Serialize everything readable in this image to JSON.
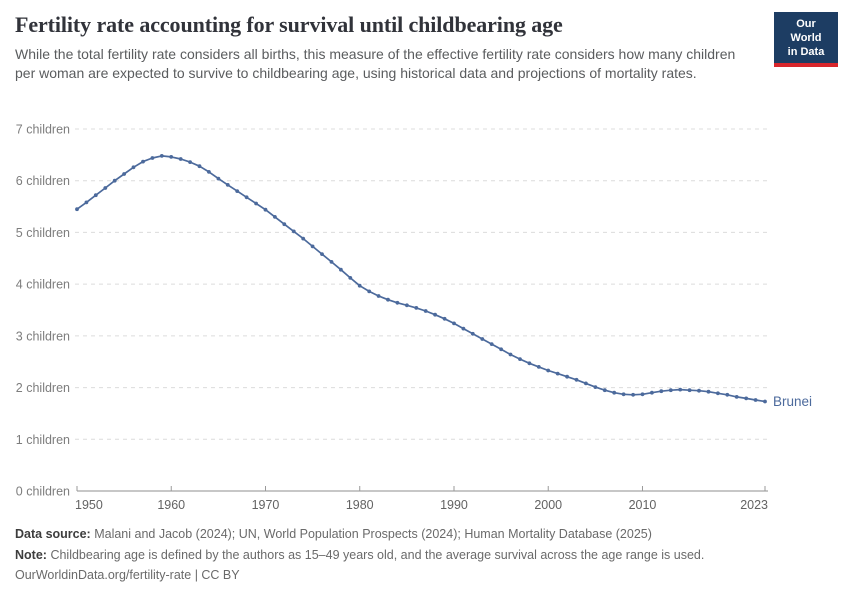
{
  "header": {
    "title": "Fertility rate accounting for survival until childbearing age",
    "subtitle": "While the total fertility rate considers all births, this measure of the effective fertility rate considers how many children per woman are expected to survive to childbearing age, using historical data and projections of mortality rates.",
    "logo": {
      "line1": "Our World",
      "line2": "in Data",
      "bg_color": "#1d3d63",
      "accent_color": "#d8262c"
    }
  },
  "chart_data": {
    "type": "line",
    "title": "Fertility rate accounting for survival until childbearing age",
    "xlabel": "",
    "ylabel": "",
    "xlim": [
      1950,
      2023
    ],
    "ylim": [
      0,
      7
    ],
    "xticks": [
      1950,
      1960,
      1970,
      1980,
      1990,
      2000,
      2010,
      2023
    ],
    "yticks": [
      0,
      1,
      2,
      3,
      4,
      5,
      6,
      7
    ],
    "ytick_suffix": " children",
    "grid": "dashed-horizontal",
    "legend_position": "end-of-line",
    "gridline_color": "#dcdcdc",
    "axis_color": "#8f8f8f",
    "series": [
      {
        "name": "Brunei",
        "color": "#4c6a9c",
        "years": [
          1950,
          1951,
          1952,
          1953,
          1954,
          1955,
          1956,
          1957,
          1958,
          1959,
          1960,
          1961,
          1962,
          1963,
          1964,
          1965,
          1966,
          1967,
          1968,
          1969,
          1970,
          1971,
          1972,
          1973,
          1974,
          1975,
          1976,
          1977,
          1978,
          1979,
          1980,
          1981,
          1982,
          1983,
          1984,
          1985,
          1986,
          1987,
          1988,
          1989,
          1990,
          1991,
          1992,
          1993,
          1994,
          1995,
          1996,
          1997,
          1998,
          1999,
          2000,
          2001,
          2002,
          2003,
          2004,
          2005,
          2006,
          2007,
          2008,
          2009,
          2010,
          2011,
          2012,
          2013,
          2014,
          2015,
          2016,
          2017,
          2018,
          2019,
          2020,
          2021,
          2022,
          2023
        ],
        "values": [
          5.45,
          5.58,
          5.72,
          5.86,
          6.0,
          6.13,
          6.26,
          6.37,
          6.44,
          6.48,
          6.46,
          6.42,
          6.36,
          6.28,
          6.17,
          6.04,
          5.92,
          5.8,
          5.68,
          5.56,
          5.44,
          5.3,
          5.16,
          5.02,
          4.88,
          4.73,
          4.58,
          4.43,
          4.28,
          4.12,
          3.97,
          3.86,
          3.77,
          3.7,
          3.64,
          3.59,
          3.54,
          3.48,
          3.41,
          3.33,
          3.24,
          3.14,
          3.04,
          2.94,
          2.84,
          2.74,
          2.64,
          2.55,
          2.47,
          2.4,
          2.33,
          2.27,
          2.21,
          2.15,
          2.08,
          2.01,
          1.95,
          1.9,
          1.87,
          1.86,
          1.87,
          1.9,
          1.93,
          1.95,
          1.96,
          1.95,
          1.94,
          1.92,
          1.89,
          1.86,
          1.82,
          1.79,
          1.76,
          1.73
        ]
      }
    ]
  },
  "footer": {
    "datasource_label": "Data source:",
    "datasource_text": "Malani and Jacob (2024); UN, World Population Prospects (2024); Human Mortality Database (2025)",
    "note_label": "Note:",
    "note_text": "Childbearing age is defined by the authors as 15–49 years old, and the average survival across the age range is used.",
    "license": "OurWorldinData.org/fertility-rate | CC BY"
  }
}
